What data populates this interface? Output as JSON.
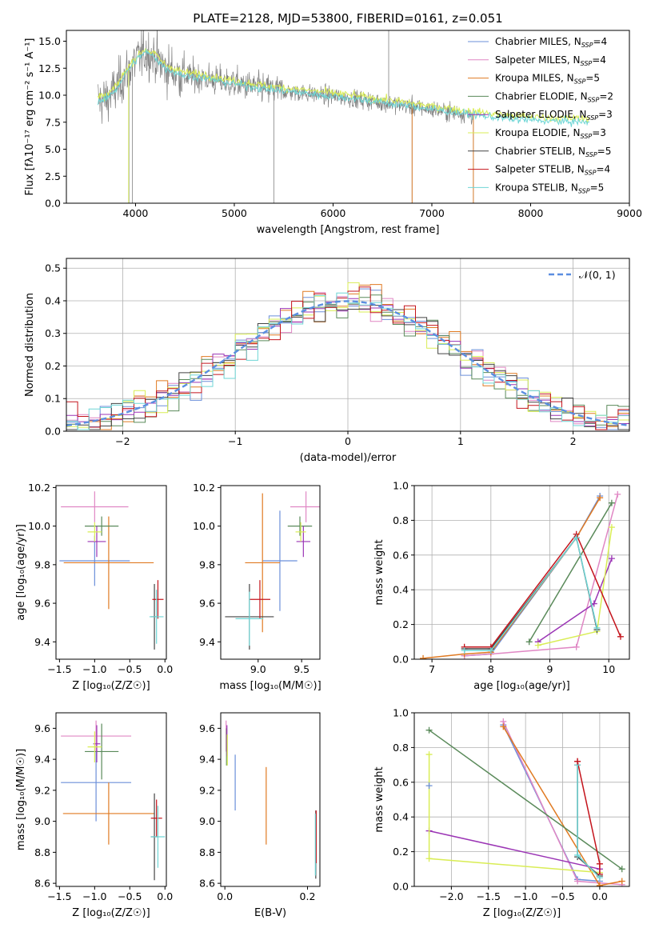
{
  "title": "PLATE=2128, MJD=53800, FIBERID=0161, z=0.051",
  "colors": {
    "Chabrier MILES": "#6b8fd9",
    "Salpeter MILES": "#e087c4",
    "Kroupa MILES": "#e07a22",
    "Chabrier ELODIE": "#5a8a5a",
    "Salpeter ELODIE": "#9b35b5",
    "Kroupa ELODIE": "#d9ed55",
    "Chabrier STELIB": "#444444",
    "Salpeter STELIB": "#c4141c",
    "Kroupa STELIB": "#6fd6d6",
    "data": "#808080",
    "normal": "#5b8ee0"
  },
  "chart_data": [
    {
      "type": "line",
      "panel": "spectrum",
      "xlabel": "wavelength [Angstrom, rest frame]",
      "ylabel": "Flux [fλ10⁻¹⁷ erg cm⁻² s⁻¹ A⁻¹]",
      "xlim": [
        3300,
        9000
      ],
      "ylim": [
        0,
        16
      ],
      "xticks": [
        4000,
        5000,
        6000,
        7000,
        8000,
        9000
      ],
      "yticks": [
        0.0,
        2.5,
        5.0,
        7.5,
        10.0,
        12.5,
        15.0
      ],
      "legend_position": "top-right",
      "legend": [
        {
          "name": "Chabrier MILES",
          "nssp": "4"
        },
        {
          "name": "Salpeter MILES",
          "nssp": "4"
        },
        {
          "name": "Kroupa MILES",
          "nssp": "5"
        },
        {
          "name": "Chabrier ELODIE",
          "nssp": "2"
        },
        {
          "name": "Salpeter ELODIE",
          "nssp": "3"
        },
        {
          "name": "Kroupa ELODIE",
          "nssp": "3"
        },
        {
          "name": "Chabrier STELIB",
          "nssp": "5"
        },
        {
          "name": "Salpeter STELIB",
          "nssp": "4"
        },
        {
          "name": "Kroupa STELIB",
          "nssp": "5"
        }
      ],
      "continuum": {
        "x": [
          3620,
          3700,
          3800,
          3900,
          4000,
          4100,
          4200,
          4300,
          4500,
          4700,
          4900,
          5100,
          5300,
          5500,
          5800,
          6200,
          6600,
          7000,
          7400,
          7800,
          8200,
          8600,
          9000
        ],
        "y": [
          9.5,
          9.6,
          10.5,
          12.0,
          13.2,
          14.0,
          13.5,
          12.5,
          11.8,
          11.6,
          11.2,
          10.9,
          10.6,
          10.4,
          10.1,
          9.7,
          9.2,
          8.7,
          8.2,
          7.8,
          7.6,
          7.5,
          7.4
        ]
      },
      "absorption_lines": [
        {
          "x": 3934,
          "depth": 16
        },
        {
          "x": 3969,
          "depth": 16
        },
        {
          "x": 5400,
          "depth": 11
        },
        {
          "x": 6800,
          "depth": 9
        },
        {
          "x": 7420,
          "depth": 8
        }
      ],
      "emission_lines": [
        {
          "x": 6563,
          "peak": 16
        }
      ]
    },
    {
      "type": "line",
      "panel": "residual-distribution",
      "xlabel": "(data-model)/error",
      "ylabel": "Normed distribution",
      "xlim": [
        -2.5,
        2.5
      ],
      "ylim": [
        0,
        0.53
      ],
      "xticks": [
        -2,
        -1,
        0,
        1,
        2
      ],
      "yticks": [
        0.0,
        0.1,
        0.2,
        0.3,
        0.4,
        0.5
      ],
      "grid": true,
      "legend_position": "top-right",
      "legend": "𝒩(0, 1)",
      "bin_width": 0.1
    },
    {
      "type": "scatter",
      "panel": "age-vs-Z",
      "xlabel": "Z [log₁₀(Z/Z☉)]",
      "ylabel": "age  [log₁₀(age/yr)]",
      "xlim": [
        -1.55,
        0.02
      ],
      "ylim": [
        9.31,
        10.21
      ],
      "xticks": [
        -1.5,
        -1.0,
        -0.5,
        0.0
      ],
      "yticks": [
        9.4,
        9.6,
        9.8,
        10.0,
        10.2
      ],
      "points": [
        {
          "model": "Chabrier MILES",
          "x": -1.0,
          "xerr": 0.5,
          "y": 9.82,
          "yerr": 0.13
        },
        {
          "model": "Salpeter MILES",
          "x": -1.0,
          "xerr": 0.48,
          "y": 10.1,
          "yerr": 0.08
        },
        {
          "model": "Kroupa MILES",
          "x": -0.8,
          "xerr": 0.64,
          "y": 9.81,
          "yerr": 0.24
        },
        {
          "model": "Chabrier ELODIE",
          "x": -0.9,
          "xerr": 0.24,
          "y": 10.0,
          "yerr": 0.05
        },
        {
          "model": "Salpeter ELODIE",
          "x": -0.97,
          "xerr": 0.13,
          "y": 9.92,
          "yerr": 0.08
        },
        {
          "model": "Kroupa ELODIE",
          "x": -1.0,
          "xerr": 0.1,
          "y": 9.97,
          "yerr": 0.05
        },
        {
          "model": "Chabrier STELIB",
          "x": -0.15,
          "xerr": 0.05,
          "y": 9.53,
          "yerr": 0.17
        },
        {
          "model": "Salpeter STELIB",
          "x": -0.1,
          "xerr": 0.08,
          "y": 9.62,
          "yerr": 0.1
        },
        {
          "model": "Kroupa STELIB",
          "x": -0.12,
          "xerr": 0.1,
          "y": 9.53,
          "yerr": 0.14
        }
      ]
    },
    {
      "type": "scatter",
      "panel": "age-vs-mass",
      "xlabel": "mass [log₁₀(M/M☉)]",
      "ylabel": "",
      "xlim": [
        8.57,
        9.71
      ],
      "ylim": [
        9.31,
        10.21
      ],
      "xticks": [
        9.0,
        9.5
      ],
      "yticks": [
        9.4,
        9.6,
        9.8,
        10.0,
        10.2
      ],
      "points": [
        {
          "model": "Chabrier MILES",
          "x": 9.25,
          "xerr": 0.2,
          "y": 9.82,
          "yerr": 0.26
        },
        {
          "model": "Salpeter MILES",
          "x": 9.55,
          "xerr": 0.18,
          "y": 10.1,
          "yerr": 0.08
        },
        {
          "model": "Kroupa MILES",
          "x": 9.05,
          "xerr": 0.2,
          "y": 9.81,
          "yerr": 0.36
        },
        {
          "model": "Chabrier ELODIE",
          "x": 9.48,
          "xerr": 0.14,
          "y": 10.0,
          "yerr": 0.05
        },
        {
          "model": "Salpeter ELODIE",
          "x": 9.52,
          "xerr": 0.08,
          "y": 9.92,
          "yerr": 0.08
        },
        {
          "model": "Kroupa ELODIE",
          "x": 9.49,
          "xerr": 0.06,
          "y": 9.97,
          "yerr": 0.05
        },
        {
          "model": "Chabrier STELIB",
          "x": 8.9,
          "xerr": 0.28,
          "y": 9.53,
          "yerr": 0.17
        },
        {
          "model": "Salpeter STELIB",
          "x": 9.02,
          "xerr": 0.12,
          "y": 9.62,
          "yerr": 0.1
        },
        {
          "model": "Kroupa STELIB",
          "x": 8.9,
          "xerr": 0.16,
          "y": 9.52,
          "yerr": 0.14
        }
      ]
    },
    {
      "type": "line",
      "panel": "mass-weight-vs-age",
      "xlabel": "age  [log₁₀(age/yr)]",
      "ylabel": "mass weight",
      "xlim": [
        6.7,
        10.35
      ],
      "ylim": [
        0,
        1
      ],
      "xticks": [
        7,
        8,
        9,
        10
      ],
      "yticks": [
        0.0,
        0.2,
        0.4,
        0.6,
        0.8,
        1.0
      ],
      "grid": true,
      "series": [
        {
          "model": "Chabrier MILES",
          "x": [
            7.55,
            8.0,
            9.45,
            9.85
          ],
          "y": [
            0.02,
            0.03,
            0.7,
            0.94
          ]
        },
        {
          "model": "Salpeter MILES",
          "x": [
            7.55,
            8.0,
            9.45,
            10.15
          ],
          "y": [
            0.02,
            0.03,
            0.07,
            0.95
          ]
        },
        {
          "model": "Kroupa MILES",
          "x": [
            6.85,
            7.55,
            8.0,
            9.45,
            9.85
          ],
          "y": [
            0.005,
            0.03,
            0.04,
            0.7,
            0.93
          ]
        },
        {
          "model": "Chabrier ELODIE",
          "x": [
            8.65,
            10.05
          ],
          "y": [
            0.1,
            0.9
          ]
        },
        {
          "model": "Salpeter ELODIE",
          "x": [
            8.8,
            9.75,
            10.05
          ],
          "y": [
            0.1,
            0.32,
            0.58
          ]
        },
        {
          "model": "Kroupa ELODIE",
          "x": [
            8.8,
            9.8,
            10.05
          ],
          "y": [
            0.08,
            0.16,
            0.76
          ]
        },
        {
          "model": "Chabrier STELIB",
          "x": [
            7.55,
            8.0,
            9.45,
            9.8
          ],
          "y": [
            0.06,
            0.06,
            0.7,
            0.17
          ]
        },
        {
          "model": "Salpeter STELIB",
          "x": [
            7.55,
            8.0,
            9.45,
            10.2
          ],
          "y": [
            0.07,
            0.07,
            0.72,
            0.13
          ]
        },
        {
          "model": "Kroupa STELIB",
          "x": [
            7.55,
            8.0,
            9.45,
            9.8
          ],
          "y": [
            0.05,
            0.05,
            0.7,
            0.18
          ]
        }
      ]
    },
    {
      "type": "scatter",
      "panel": "mass-vs-Z",
      "xlabel": "Z [log₁₀(Z/Z☉)]",
      "ylabel": "mass [log₁₀(M/M☉)]",
      "xlim": [
        -1.55,
        0.02
      ],
      "ylim": [
        8.58,
        9.7
      ],
      "xticks": [
        -1.5,
        -1.0,
        -0.5,
        0.0
      ],
      "yticks": [
        8.6,
        8.8,
        9.0,
        9.2,
        9.4,
        9.6
      ],
      "points": [
        {
          "model": "Chabrier MILES",
          "x": -0.98,
          "xerr": 0.5,
          "y": 9.25,
          "yerr": 0.25
        },
        {
          "model": "Salpeter MILES",
          "x": -0.98,
          "xerr": 0.5,
          "y": 9.55,
          "yerr": 0.1
        },
        {
          "model": "Kroupa MILES",
          "x": -0.8,
          "xerr": 0.65,
          "y": 9.05,
          "yerr": 0.2
        },
        {
          "model": "Chabrier ELODIE",
          "x": -0.9,
          "xerr": 0.24,
          "y": 9.45,
          "yerr": 0.18
        },
        {
          "model": "Salpeter ELODIE",
          "x": -0.97,
          "xerr": 0.05,
          "y": 9.5,
          "yerr": 0.12
        },
        {
          "model": "Kroupa ELODIE",
          "x": -1.0,
          "xerr": 0.1,
          "y": 9.48,
          "yerr": 0.1
        },
        {
          "model": "Chabrier STELIB",
          "x": -0.15,
          "xerr": 0.05,
          "y": 8.9,
          "yerr": 0.28
        },
        {
          "model": "Salpeter STELIB",
          "x": -0.12,
          "xerr": 0.08,
          "y": 9.02,
          "yerr": 0.12
        },
        {
          "model": "Kroupa STELIB",
          "x": -0.1,
          "xerr": 0.1,
          "y": 8.9,
          "yerr": 0.2
        }
      ]
    },
    {
      "type": "scatter",
      "panel": "mass-vs-EBV",
      "xlabel": "E(B-V)",
      "ylabel": "",
      "xlim": [
        -0.01,
        0.23
      ],
      "ylim": [
        8.58,
        9.7
      ],
      "xticks": [
        0.0,
        0.2
      ],
      "yticks": [
        8.6,
        8.8,
        9.0,
        9.2,
        9.4,
        9.6
      ],
      "points": [
        {
          "model": "Chabrier MILES",
          "x": 0.025,
          "y": 9.25,
          "yerr": 0.18
        },
        {
          "model": "Salpeter MILES",
          "x": 0.003,
          "y": 9.55,
          "yerr": 0.1
        },
        {
          "model": "Kroupa MILES",
          "x": 0.1,
          "y": 9.1,
          "yerr": 0.25
        },
        {
          "model": "Chabrier ELODIE",
          "x": 0.004,
          "y": 9.48,
          "yerr": 0.12
        },
        {
          "model": "Salpeter ELODIE",
          "x": 0.005,
          "y": 9.52,
          "yerr": 0.1
        },
        {
          "model": "Kroupa ELODIE",
          "x": 0.006,
          "y": 9.46,
          "yerr": 0.1
        },
        {
          "model": "Chabrier STELIB",
          "x": 0.22,
          "y": 8.85,
          "yerr": 0.22
        },
        {
          "model": "Salpeter STELIB",
          "x": 0.221,
          "y": 8.9,
          "yerr": 0.17
        },
        {
          "model": "Kroupa STELIB",
          "x": 0.219,
          "y": 8.85,
          "yerr": 0.2
        }
      ]
    },
    {
      "type": "line",
      "panel": "mass-weight-vs-Z",
      "xlabel": "Z [log₁₀(Z/Z☉)]",
      "ylabel": "mass weight",
      "xlim": [
        -2.5,
        0.4
      ],
      "ylim": [
        0,
        1
      ],
      "xticks": [
        -2.0,
        -1.5,
        -1.0,
        -0.5,
        0.0
      ],
      "yticks": [
        0.0,
        0.2,
        0.4,
        0.6,
        0.8,
        1.0
      ],
      "grid": true,
      "series": [
        {
          "model": "Chabrier MILES",
          "x": [
            -1.3,
            -0.3,
            0.0
          ],
          "y": [
            0.93,
            0.04,
            0.03
          ]
        },
        {
          "model": "Salpeter MILES",
          "x": [
            -1.3,
            -0.3,
            0.0,
            0.3
          ],
          "y": [
            0.95,
            0.03,
            0.02,
            0.01
          ]
        },
        {
          "model": "Kroupa MILES",
          "x": [
            -1.3,
            0.0,
            0.3
          ],
          "y": [
            0.92,
            0.005,
            0.03
          ]
        },
        {
          "model": "Chabrier ELODIE",
          "x": [
            -2.3,
            0.3
          ],
          "y": [
            0.9,
            0.1
          ]
        },
        {
          "model": "Salpeter ELODIE",
          "x": [
            -2.3,
            0.0
          ],
          "y": [
            0.32,
            0.1
          ]
        },
        {
          "model": "Kroupa ELODIE",
          "x": [
            -2.3,
            -2.3,
            0.0
          ],
          "y": [
            0.76,
            0.16,
            0.08
          ]
        },
        {
          "model": "Chabrier STELIB",
          "x": [
            -0.3,
            -0.3,
            0.0
          ],
          "y": [
            0.7,
            0.17,
            0.06
          ]
        },
        {
          "model": "Salpeter STELIB",
          "x": [
            -0.3,
            0.0,
            0.0
          ],
          "y": [
            0.72,
            0.13,
            0.07
          ]
        },
        {
          "model": "Kroupa STELIB",
          "x": [
            -0.3,
            -0.3,
            0.0
          ],
          "y": [
            0.7,
            0.18,
            0.05
          ]
        }
      ],
      "extra_marks": [
        {
          "model": "Chabrier MILES",
          "x": -2.3,
          "y": 0.58
        },
        {
          "model": "Salpeter STELIB",
          "x": -0.3,
          "y": 0.72
        }
      ]
    }
  ]
}
